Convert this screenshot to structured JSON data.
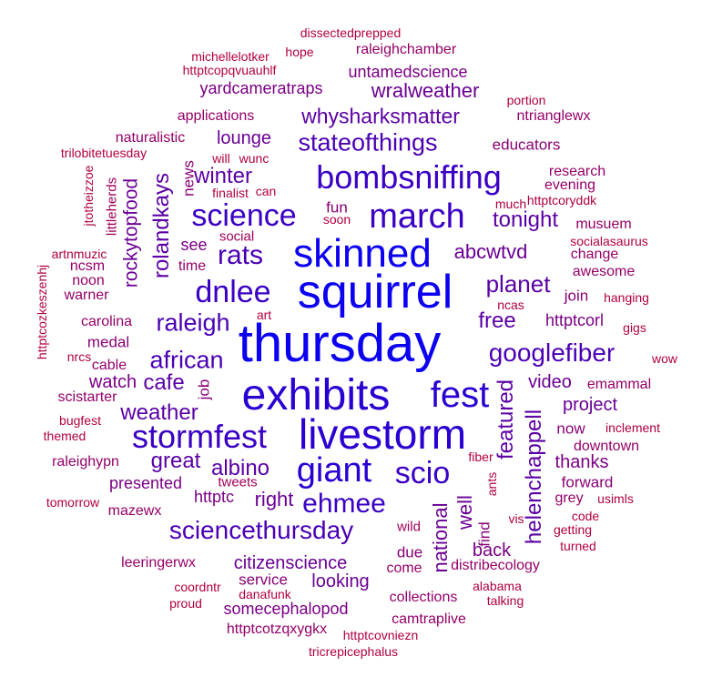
{
  "chart_data": {
    "type": "wordcloud",
    "words": [
      {
        "text": "thursday",
        "weight": 100,
        "color": "#0b00f0"
      },
      {
        "text": "squirrel",
        "weight": 96,
        "color": "#0b00f0"
      },
      {
        "text": "exhibits",
        "weight": 84,
        "color": "#2a00d2"
      },
      {
        "text": "livestorm",
        "weight": 80,
        "color": "#2a00d2"
      },
      {
        "text": "skinned",
        "weight": 78,
        "color": "#0b00f0"
      },
      {
        "text": "fest",
        "weight": 70,
        "color": "#2a00d2"
      },
      {
        "text": "giant",
        "weight": 66,
        "color": "#2a00d2"
      },
      {
        "text": "march",
        "weight": 62,
        "color": "#3a00c4"
      },
      {
        "text": "bombsniffing",
        "weight": 58,
        "color": "#3a00c4"
      },
      {
        "text": "stormfest",
        "weight": 54,
        "color": "#3a00c4"
      },
      {
        "text": "science",
        "weight": 52,
        "color": "#3a00c4"
      },
      {
        "text": "scio",
        "weight": 50,
        "color": "#3a00c4"
      },
      {
        "text": "dnlee",
        "weight": 50,
        "color": "#3a00c4"
      },
      {
        "text": "ehmee",
        "weight": 46,
        "color": "#3a00c4"
      },
      {
        "text": "rats",
        "weight": 44,
        "color": "#4a00b4"
      },
      {
        "text": "sciencethursday",
        "weight": 42,
        "color": "#4a00b4"
      },
      {
        "text": "googlefiber",
        "weight": 40,
        "color": "#4a00b4"
      },
      {
        "text": "stateofthings",
        "weight": 38,
        "color": "#4a00b4"
      },
      {
        "text": "african",
        "weight": 38,
        "color": "#4a00b4"
      },
      {
        "text": "raleigh",
        "weight": 36,
        "color": "#4a00b4"
      },
      {
        "text": "planet",
        "weight": 34,
        "color": "#5a00a4"
      },
      {
        "text": "whysharksmatter",
        "weight": 32,
        "color": "#5a00a4"
      },
      {
        "text": "weather",
        "weight": 32,
        "color": "#5a00a4"
      },
      {
        "text": "winter",
        "weight": 32,
        "color": "#5a00a4"
      },
      {
        "text": "tonight",
        "weight": 32,
        "color": "#5a00a4"
      },
      {
        "text": "featured",
        "weight": 30,
        "color": "#5a00a4"
      },
      {
        "text": "helenchappell",
        "weight": 30,
        "color": "#5a00a4"
      },
      {
        "text": "rolandkays",
        "weight": 30,
        "color": "#5a00a4"
      },
      {
        "text": "cafe",
        "weight": 30,
        "color": "#5a00a4"
      },
      {
        "text": "albino",
        "weight": 30,
        "color": "#5a00a4"
      },
      {
        "text": "great",
        "weight": 30,
        "color": "#5a00a4"
      },
      {
        "text": "free",
        "weight": 30,
        "color": "#5a00a4"
      },
      {
        "text": "well",
        "weight": 28,
        "color": "#6a0094"
      },
      {
        "text": "national",
        "weight": 28,
        "color": "#6a0094"
      },
      {
        "text": "abcwtvd",
        "weight": 28,
        "color": "#6a0094"
      },
      {
        "text": "right",
        "weight": 28,
        "color": "#6a0094"
      },
      {
        "text": "wralweather",
        "weight": 28,
        "color": "#6a0094"
      },
      {
        "text": "rockytopfood",
        "weight": 26,
        "color": "#6a0094"
      },
      {
        "text": "citizenscience",
        "weight": 26,
        "color": "#6a0094"
      },
      {
        "text": "video",
        "weight": 26,
        "color": "#6a0094"
      },
      {
        "text": "project",
        "weight": 26,
        "color": "#6a0094"
      },
      {
        "text": "lounge",
        "weight": 26,
        "color": "#6a0094"
      },
      {
        "text": "looking",
        "weight": 26,
        "color": "#6a0094"
      },
      {
        "text": "watch",
        "weight": 24,
        "color": "#7a0084"
      },
      {
        "text": "thanks",
        "weight": 24,
        "color": "#7a0084"
      },
      {
        "text": "back",
        "weight": 24,
        "color": "#7a0084"
      },
      {
        "text": "see",
        "weight": 22,
        "color": "#7a0084"
      },
      {
        "text": "presented",
        "weight": 22,
        "color": "#7a0084"
      },
      {
        "text": "httptc",
        "weight": 22,
        "color": "#7a0084"
      },
      {
        "text": "httptcorl",
        "weight": 22,
        "color": "#7a0084"
      },
      {
        "text": "yardcameratraps",
        "weight": 22,
        "color": "#7a0084"
      },
      {
        "text": "untamedscience",
        "weight": 22,
        "color": "#7a0084"
      },
      {
        "text": "somecephalopod",
        "weight": 22,
        "color": "#7a0084"
      },
      {
        "text": "medal",
        "weight": 20,
        "color": "#880076"
      },
      {
        "text": "forward",
        "weight": 20,
        "color": "#880076"
      },
      {
        "text": "join",
        "weight": 20,
        "color": "#880076"
      },
      {
        "text": "now",
        "weight": 20,
        "color": "#880076"
      },
      {
        "text": "educators",
        "weight": 20,
        "color": "#880076"
      },
      {
        "text": "job",
        "weight": 20,
        "color": "#880076"
      },
      {
        "text": "find",
        "weight": 20,
        "color": "#880076"
      },
      {
        "text": "due",
        "weight": 20,
        "color": "#880076"
      },
      {
        "text": "service",
        "weight": 20,
        "color": "#880076"
      },
      {
        "text": "fun",
        "weight": 20,
        "color": "#880076"
      },
      {
        "text": "news",
        "weight": 20,
        "color": "#880076"
      },
      {
        "text": "noon",
        "weight": 18,
        "color": "#940068"
      },
      {
        "text": "ncsm",
        "weight": 18,
        "color": "#940068"
      },
      {
        "text": "warner",
        "weight": 18,
        "color": "#940068"
      },
      {
        "text": "naturalistic",
        "weight": 18,
        "color": "#940068"
      },
      {
        "text": "applications",
        "weight": 18,
        "color": "#940068"
      },
      {
        "text": "cable",
        "weight": 18,
        "color": "#940068"
      },
      {
        "text": "carolina",
        "weight": 18,
        "color": "#940068"
      },
      {
        "text": "raleighypn",
        "weight": 18,
        "color": "#940068"
      },
      {
        "text": "scistarter",
        "weight": 18,
        "color": "#940068"
      },
      {
        "text": "mazewx",
        "weight": 18,
        "color": "#940068"
      },
      {
        "text": "leeringerwx",
        "weight": 18,
        "color": "#940068"
      },
      {
        "text": "collections",
        "weight": 18,
        "color": "#940068"
      },
      {
        "text": "camtraplive",
        "weight": 18,
        "color": "#940068"
      },
      {
        "text": "httptcotzqxygkx",
        "weight": 18,
        "color": "#940068"
      },
      {
        "text": "distribecology",
        "weight": 18,
        "color": "#940068"
      },
      {
        "text": "downtown",
        "weight": 18,
        "color": "#940068"
      },
      {
        "text": "awesome",
        "weight": 18,
        "color": "#940068"
      },
      {
        "text": "change",
        "weight": 18,
        "color": "#940068"
      },
      {
        "text": "musuem",
        "weight": 18,
        "color": "#940068"
      },
      {
        "text": "research",
        "weight": 18,
        "color": "#940068"
      },
      {
        "text": "evening",
        "weight": 18,
        "color": "#940068"
      },
      {
        "text": "ntrianglewx",
        "weight": 18,
        "color": "#940068"
      },
      {
        "text": "raleighchamber",
        "weight": 18,
        "color": "#940068"
      },
      {
        "text": "emammal",
        "weight": 18,
        "color": "#940068"
      },
      {
        "text": "grey",
        "weight": 18,
        "color": "#940068"
      },
      {
        "text": "come",
        "weight": 18,
        "color": "#940068"
      },
      {
        "text": "time",
        "weight": 18,
        "color": "#940068"
      },
      {
        "text": "social",
        "weight": 16,
        "color": "#a0005a"
      },
      {
        "text": "tweets",
        "weight": 16,
        "color": "#a0005a"
      },
      {
        "text": "wild",
        "weight": 16,
        "color": "#a0005a"
      },
      {
        "text": "littleherds",
        "weight": 16,
        "color": "#a0005a"
      },
      {
        "text": "httptcopqvuauhlf",
        "weight": 14,
        "color": "#b00040"
      },
      {
        "text": "michellelotker",
        "weight": 14,
        "color": "#b00040"
      },
      {
        "text": "hope",
        "weight": 14,
        "color": "#b00040"
      },
      {
        "text": "dissectedprepped",
        "weight": 14,
        "color": "#b00040"
      },
      {
        "text": "portion",
        "weight": 14,
        "color": "#b00040"
      },
      {
        "text": "httptcoryddk",
        "weight": 14,
        "color": "#b00040"
      },
      {
        "text": "much",
        "weight": 14,
        "color": "#b00040"
      },
      {
        "text": "socialasaurus",
        "weight": 14,
        "color": "#b00040"
      },
      {
        "text": "hanging",
        "weight": 14,
        "color": "#b00040"
      },
      {
        "text": "gigs",
        "weight": 14,
        "color": "#b00040"
      },
      {
        "text": "wow",
        "weight": 14,
        "color": "#b00040"
      },
      {
        "text": "inclement",
        "weight": 14,
        "color": "#b00040"
      },
      {
        "text": "usimls",
        "weight": 14,
        "color": "#b00040"
      },
      {
        "text": "code",
        "weight": 14,
        "color": "#b00040"
      },
      {
        "text": "getting",
        "weight": 14,
        "color": "#b00040"
      },
      {
        "text": "turned",
        "weight": 14,
        "color": "#b00040"
      },
      {
        "text": "vis",
        "weight": 14,
        "color": "#b00040"
      },
      {
        "text": "alabama",
        "weight": 14,
        "color": "#b00040"
      },
      {
        "text": "talking",
        "weight": 14,
        "color": "#b00040"
      },
      {
        "text": "httptcovniezn",
        "weight": 14,
        "color": "#b00040"
      },
      {
        "text": "tricrepicephalus",
        "weight": 14,
        "color": "#b00040"
      },
      {
        "text": "proud",
        "weight": 14,
        "color": "#b00040"
      },
      {
        "text": "danafunk",
        "weight": 14,
        "color": "#b00040"
      },
      {
        "text": "coordntr",
        "weight": 14,
        "color": "#b00040"
      },
      {
        "text": "tomorrow",
        "weight": 14,
        "color": "#b00040"
      },
      {
        "text": "themed",
        "weight": 14,
        "color": "#b00040"
      },
      {
        "text": "bugfest",
        "weight": 14,
        "color": "#b00040"
      },
      {
        "text": "nrcs",
        "weight": 14,
        "color": "#b00040"
      },
      {
        "text": "httptcozkeszenhj",
        "weight": 14,
        "color": "#b00040"
      },
      {
        "text": "artnmuzic",
        "weight": 14,
        "color": "#b00040"
      },
      {
        "text": "jtotheizzoe",
        "weight": 14,
        "color": "#b00040"
      },
      {
        "text": "trilobitetuesday",
        "weight": 14,
        "color": "#b00040"
      },
      {
        "text": "will",
        "weight": 14,
        "color": "#b00040"
      },
      {
        "text": "wunc",
        "weight": 14,
        "color": "#b00040"
      },
      {
        "text": "finalist",
        "weight": 14,
        "color": "#b00040"
      },
      {
        "text": "can",
        "weight": 14,
        "color": "#b00040"
      },
      {
        "text": "soon",
        "weight": 14,
        "color": "#b00040"
      },
      {
        "text": "art",
        "weight": 14,
        "color": "#b00040"
      },
      {
        "text": "ncas",
        "weight": 14,
        "color": "#b00040"
      },
      {
        "text": "fiber",
        "weight": 14,
        "color": "#b00040"
      },
      {
        "text": "ants",
        "weight": 14,
        "color": "#b00040"
      }
    ]
  }
}
